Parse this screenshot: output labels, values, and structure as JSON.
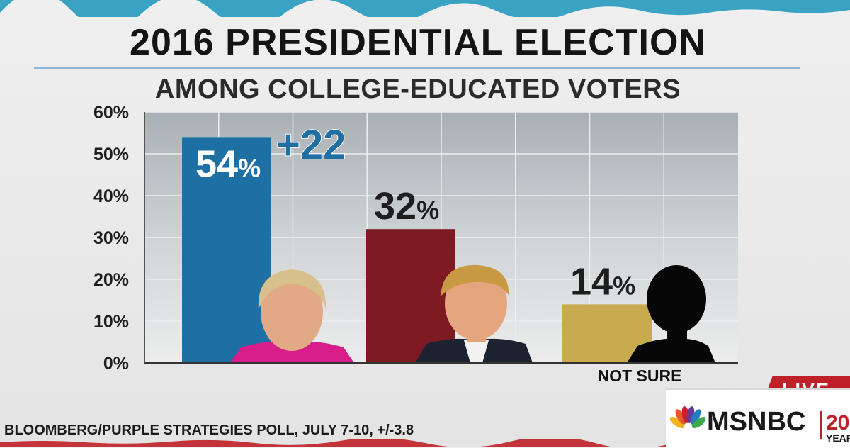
{
  "title": "2016 PRESIDENTIAL ELECTION",
  "subtitle": "AMONG COLLEGE-EDUCATED VOTERS",
  "source": "BLOOMBERG/PURPLE STRATEGIES POLL, JULY 7-10, +/-3.8",
  "margin_label": "+22",
  "live_label": "LIVE",
  "network": {
    "name": "MSNBC",
    "years_number": "20",
    "years_label": "YEAR"
  },
  "colors": {
    "blue": "#1e6fa4",
    "red": "#7e1a22",
    "gold": "#c9ab4f",
    "accent": "#c0202a"
  },
  "chart_data": {
    "type": "bar",
    "title": "2016 PRESIDENTIAL ELECTION",
    "subtitle": "AMONG COLLEGE-EDUCATED VOTERS",
    "categories": [
      "",
      "",
      "NOT SURE"
    ],
    "values": [
      54,
      32,
      14
    ],
    "value_labels": [
      "54",
      "32",
      "14"
    ],
    "value_suffix": "%",
    "ylim": [
      0,
      60
    ],
    "yticks": [
      "0%",
      "10%",
      "20%",
      "30%",
      "40%",
      "50%",
      "60%"
    ],
    "grid": true,
    "annotation": "+22"
  }
}
